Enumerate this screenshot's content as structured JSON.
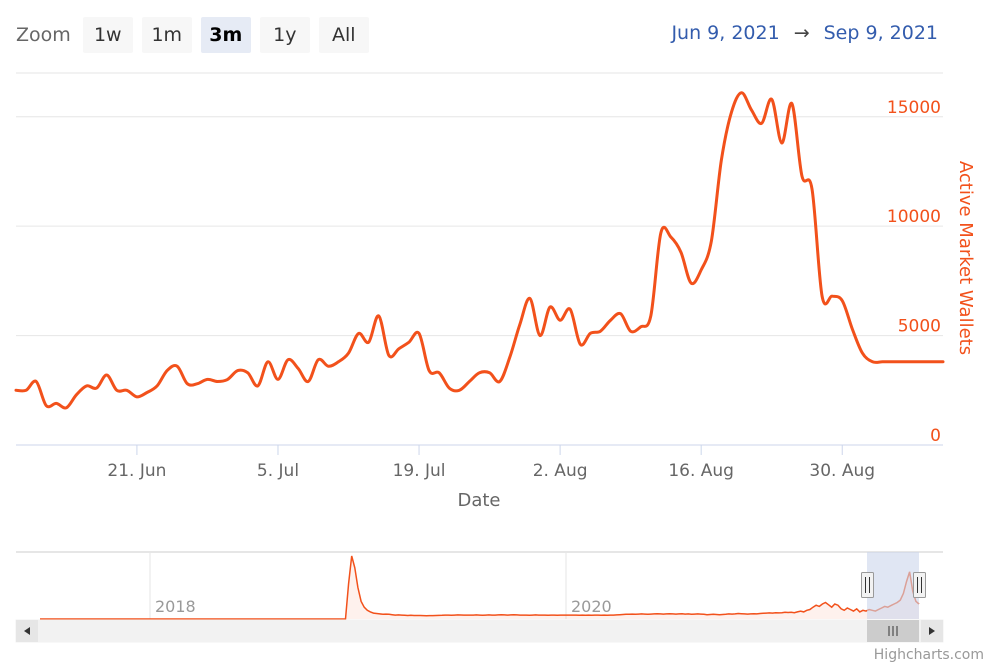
{
  "zoom": {
    "label": "Zoom",
    "buttons": [
      "1w",
      "1m",
      "3m",
      "1y",
      "All"
    ],
    "selected": "3m"
  },
  "range": {
    "from": "Jun 9, 2021",
    "arrow": "→",
    "to": "Sep 9, 2021"
  },
  "colors": {
    "series": "#f2511b",
    "axis_title": "#f2511b",
    "range_text": "#335cad",
    "navigator_mask": "#ccd6eb"
  },
  "chart_data": {
    "type": "line",
    "title": "",
    "xlabel": "Date",
    "ylabel": "Active Market Wallets",
    "ylim": [
      0,
      17000
    ],
    "y_axis_position": "right",
    "yticks": [
      0,
      5000,
      10000,
      15000
    ],
    "xticks": [
      "21. Jun",
      "5. Jul",
      "19. Jul",
      "2. Aug",
      "16. Aug",
      "30. Aug"
    ],
    "xtick_dates": [
      "2021-06-21",
      "2021-07-05",
      "2021-07-19",
      "2021-08-02",
      "2021-08-16",
      "2021-08-30"
    ],
    "grid": true,
    "series": [
      {
        "name": "Active Market Wallets",
        "x": [
          "2021-06-09",
          "2021-06-10",
          "2021-06-11",
          "2021-06-12",
          "2021-06-13",
          "2021-06-14",
          "2021-06-15",
          "2021-06-16",
          "2021-06-17",
          "2021-06-18",
          "2021-06-19",
          "2021-06-20",
          "2021-06-21",
          "2021-06-22",
          "2021-06-23",
          "2021-06-24",
          "2021-06-25",
          "2021-06-26",
          "2021-06-27",
          "2021-06-28",
          "2021-06-29",
          "2021-06-30",
          "2021-07-01",
          "2021-07-02",
          "2021-07-03",
          "2021-07-04",
          "2021-07-05",
          "2021-07-06",
          "2021-07-07",
          "2021-07-08",
          "2021-07-09",
          "2021-07-10",
          "2021-07-11",
          "2021-07-12",
          "2021-07-13",
          "2021-07-14",
          "2021-07-15",
          "2021-07-16",
          "2021-07-17",
          "2021-07-18",
          "2021-07-19",
          "2021-07-20",
          "2021-07-21",
          "2021-07-22",
          "2021-07-23",
          "2021-07-24",
          "2021-07-25",
          "2021-07-26",
          "2021-07-27",
          "2021-07-28",
          "2021-07-29",
          "2021-07-30",
          "2021-07-31",
          "2021-08-01",
          "2021-08-02",
          "2021-08-03",
          "2021-08-04",
          "2021-08-05",
          "2021-08-06",
          "2021-08-07",
          "2021-08-08",
          "2021-08-09",
          "2021-08-10",
          "2021-08-11",
          "2021-08-12",
          "2021-08-13",
          "2021-08-14",
          "2021-08-15",
          "2021-08-16",
          "2021-08-17",
          "2021-08-18",
          "2021-08-19",
          "2021-08-20",
          "2021-08-21",
          "2021-08-22",
          "2021-08-23",
          "2021-08-24",
          "2021-08-25",
          "2021-08-26",
          "2021-08-27",
          "2021-08-28",
          "2021-08-29",
          "2021-08-30",
          "2021-08-31",
          "2021-09-01",
          "2021-09-02",
          "2021-09-03",
          "2021-09-04",
          "2021-09-05",
          "2021-09-06",
          "2021-09-07",
          "2021-09-08",
          "2021-09-09"
        ],
        "values": [
          2500,
          2500,
          2900,
          1800,
          1900,
          1700,
          2300,
          2700,
          2600,
          3200,
          2500,
          2500,
          2200,
          2400,
          2700,
          3400,
          3600,
          2800,
          2800,
          3000,
          2900,
          3000,
          3400,
          3300,
          2700,
          3800,
          3000,
          3900,
          3500,
          2900,
          3900,
          3600,
          3800,
          4200,
          5100,
          4700,
          5900,
          4100,
          4400,
          4700,
          5100,
          3400,
          3300,
          2600,
          2500,
          2900,
          3300,
          3300,
          2900,
          4000,
          5500,
          6700,
          5000,
          6300,
          5700,
          6200,
          4600,
          5100,
          5200,
          5700,
          6000,
          5200,
          5400,
          5900,
          9700,
          9500,
          8800,
          7400,
          8000,
          9300,
          13000,
          15200,
          16100,
          15300,
          14700,
          15800,
          13800,
          15600,
          12300,
          11700,
          6800,
          6800,
          6600,
          5300,
          4200,
          3800,
          3800,
          3800,
          3800,
          3800,
          3800,
          3800,
          3800
        ]
      }
    ],
    "navigator": {
      "xticks": [
        "2018",
        "2020"
      ],
      "values": [
        0,
        0,
        0,
        0,
        0,
        0,
        0,
        0,
        0,
        0,
        0,
        0,
        0,
        0,
        0,
        0,
        0,
        0,
        0,
        0,
        0,
        0,
        0,
        0,
        0,
        0,
        0,
        0,
        0,
        0,
        0,
        0,
        0,
        0,
        0,
        0,
        0,
        0,
        0,
        0,
        0,
        0,
        0,
        0,
        0,
        0,
        0,
        0,
        0,
        0,
        0,
        0,
        0,
        0,
        0,
        0,
        0,
        0,
        0,
        0,
        0,
        0,
        0,
        0,
        0,
        0,
        0,
        0,
        0,
        0,
        0,
        0,
        0,
        0,
        0,
        0,
        0,
        0,
        0,
        0,
        0,
        0,
        0,
        0,
        0,
        0,
        0,
        0,
        0,
        0,
        0,
        0,
        0,
        0,
        0,
        0,
        0,
        0,
        0,
        9000,
        16000,
        13000,
        8000,
        4500,
        3000,
        2200,
        1800,
        1500,
        1400,
        1300,
        1200,
        1250,
        1200,
        1100,
        1000,
        1050,
        1000,
        950,
        900,
        950,
        900,
        880,
        900,
        870,
        850,
        870,
        860,
        900,
        920,
        950,
        1000,
        980,
        950,
        1000,
        1050,
        1020,
        980,
        990,
        1000,
        1000,
        1050,
        1000,
        950,
        1000,
        1050,
        1000,
        980,
        1050,
        1100,
        1050,
        1000,
        1050,
        1100,
        1050,
        1000,
        980,
        1000,
        950,
        1000,
        1050,
        1000,
        980,
        1000,
        950,
        1000,
        980,
        950,
        1000,
        1000,
        980,
        990,
        1000,
        980,
        950,
        1000,
        960,
        980,
        950,
        1000,
        980,
        960,
        1000,
        950,
        980,
        1000,
        1050,
        1100,
        1150,
        1200,
        1200,
        1250,
        1200,
        1250,
        1300,
        1250,
        1200,
        1250,
        1300,
        1350,
        1300,
        1250,
        1300,
        1350,
        1300,
        1250,
        1300,
        1350,
        1250,
        1300,
        1200,
        1250,
        1300,
        1250,
        1200,
        1100,
        1150,
        1200,
        1150,
        1100,
        1150,
        1200,
        1300,
        1250,
        1300,
        1400,
        1350,
        1300,
        1250,
        1300,
        1350,
        1300,
        1400,
        1450,
        1500,
        1550,
        1500,
        1600,
        1550,
        1600,
        1700,
        1650,
        1700,
        1600,
        1800,
        2000,
        1800,
        2200,
        2400,
        3000,
        3500,
        3200,
        3800,
        4200,
        3600,
        3000,
        3800,
        3500,
        2600,
        2200,
        2800,
        2400,
        2000,
        2600,
        1800,
        2200,
        2000,
        2400,
        2200,
        2000,
        2400,
        2800,
        3200,
        3000,
        3400,
        3800,
        4200,
        4800,
        6500,
        9500,
        12000,
        7000,
        4500,
        3800
      ]
    }
  }
}
